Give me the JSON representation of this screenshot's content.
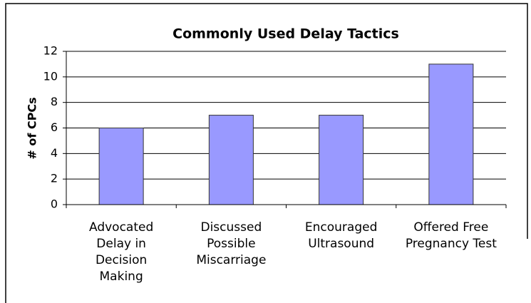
{
  "chart_data": {
    "type": "bar",
    "title": "Commonly Used Delay Tactics",
    "y_label": "# of CPCs",
    "categories": [
      "Advocated Delay in Decision Making",
      "Discussed Possible Miscarriage",
      "Encouraged Ultrasound",
      "Offered Free Pregnancy Test"
    ],
    "values": [
      6,
      7,
      7,
      11
    ],
    "color": "#9999ff",
    "ylim": [
      0,
      12
    ],
    "yticks": [
      0,
      2,
      4,
      6,
      8,
      10,
      12
    ],
    "grid": true
  }
}
